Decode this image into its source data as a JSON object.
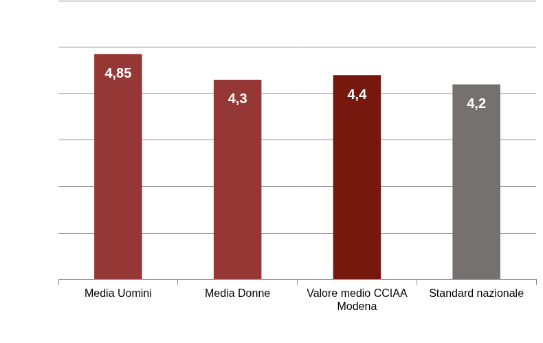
{
  "chart_data": {
    "type": "bar",
    "categories": [
      "Media Uomini",
      "Media Donne",
      "Valore medio CCIAA Modena",
      "Standard nazionale"
    ],
    "values": [
      4.85,
      4.3,
      4.4,
      4.2
    ],
    "value_labels": [
      "4,85",
      "4,3",
      "4,4",
      "4,2"
    ],
    "colors": [
      "#953735",
      "#953735",
      "#77180f",
      "#767171"
    ],
    "ylim": [
      0,
      6
    ],
    "yticks": [
      0,
      1,
      2,
      3,
      4,
      5,
      6
    ],
    "grid": true,
    "data_labels": true,
    "tick_labels": "x"
  }
}
